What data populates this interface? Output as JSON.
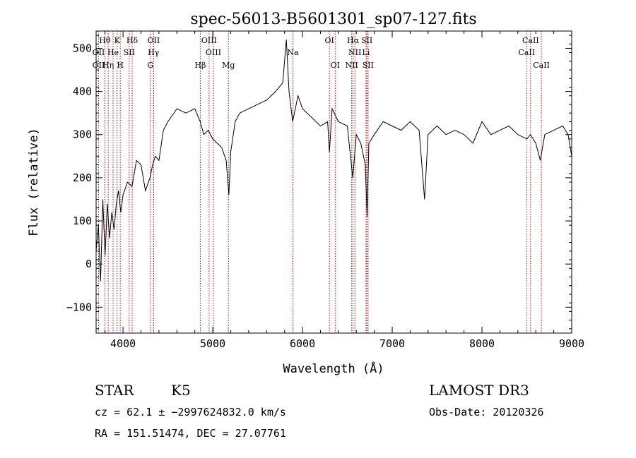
{
  "chart_data": {
    "type": "line",
    "title": "spec-56013-B5601301_sp07-127.fits",
    "xlabel": "Wavelength (Å)",
    "ylabel": "Flux (relative)",
    "xlim": [
      3700,
      9000
    ],
    "ylim": [
      -160,
      540
    ],
    "xticks": [
      4000,
      5000,
      6000,
      7000,
      8000,
      9000
    ],
    "yticks": [
      -100,
      0,
      100,
      200,
      300,
      400,
      500
    ],
    "grid": false,
    "line_color": "#000000",
    "marker_color": "#cc0000",
    "series": [
      {
        "x": [
          3700,
          3725,
          3750,
          3775,
          3800,
          3825,
          3850,
          3875,
          3900,
          3925,
          3950,
          3975,
          4000,
          4050,
          4100,
          4150,
          4200,
          4250,
          4300,
          4330,
          4360,
          4400,
          4450,
          4500,
          4600,
          4700,
          4800,
          4860,
          4900,
          4950,
          5000,
          5050,
          5100,
          5150,
          5180,
          5200,
          5250,
          5300,
          5400,
          5500,
          5600,
          5700,
          5780,
          5820,
          5850,
          5890,
          5950,
          6000,
          6100,
          6200,
          6280,
          6300,
          6330,
          6400,
          6500,
          6560,
          6600,
          6650,
          6700,
          6720,
          6740,
          6800,
          6900,
          7000,
          7100,
          7200,
          7300,
          7360,
          7400,
          7500,
          7600,
          7700,
          7800,
          7900,
          8000,
          8100,
          8200,
          8300,
          8400,
          8500,
          8540,
          8600,
          8650,
          8700,
          8800,
          8900,
          8960,
          9000
        ],
        "y": [
          30,
          90,
          -40,
          150,
          20,
          140,
          60,
          120,
          80,
          140,
          170,
          120,
          160,
          190,
          180,
          240,
          230,
          170,
          200,
          230,
          250,
          240,
          310,
          330,
          360,
          350,
          360,
          330,
          300,
          310,
          290,
          280,
          270,
          240,
          160,
          260,
          330,
          350,
          360,
          370,
          380,
          400,
          420,
          520,
          400,
          330,
          390,
          360,
          340,
          320,
          330,
          260,
          360,
          330,
          320,
          200,
          300,
          280,
          230,
          110,
          280,
          300,
          330,
          320,
          310,
          330,
          310,
          150,
          300,
          320,
          300,
          310,
          300,
          280,
          330,
          300,
          310,
          320,
          300,
          290,
          300,
          280,
          240,
          300,
          310,
          320,
          300,
          250
        ]
      }
    ],
    "lines": [
      {
        "label": "Hθ",
        "x": 3797,
        "row": 0
      },
      {
        "label": "K",
        "x": 3934,
        "row": 0
      },
      {
        "label": "Hδ",
        "x": 4102,
        "row": 0
      },
      {
        "label": "OII",
        "x": 4341,
        "row": 0
      },
      {
        "label": "OIII",
        "x": 4959,
        "row": 0
      },
      {
        "label": "OI",
        "x": 6300,
        "row": 0
      },
      {
        "label": "Hα",
        "x": 6563,
        "row": 0
      },
      {
        "label": "SII",
        "x": 6717,
        "row": 0
      },
      {
        "label": "CaII",
        "x": 8542,
        "row": 0
      },
      {
        "label": "OII",
        "x": 3727,
        "row": 1
      },
      {
        "label": "He",
        "x": 3889,
        "row": 1
      },
      {
        "label": "SII",
        "x": 4069,
        "row": 1
      },
      {
        "label": "Hγ",
        "x": 4340,
        "row": 1
      },
      {
        "label": "OIII",
        "x": 5007,
        "row": 1
      },
      {
        "label": "Na",
        "x": 5893,
        "row": 1
      },
      {
        "label": "NII",
        "x": 6584,
        "row": 1
      },
      {
        "label": "Li",
        "x": 6708,
        "row": 1
      },
      {
        "label": "CaII",
        "x": 8498,
        "row": 1
      },
      {
        "label": "OII",
        "x": 3727,
        "row": 2
      },
      {
        "label": "Hη",
        "x": 3835,
        "row": 2
      },
      {
        "label": "H",
        "x": 3969,
        "row": 2
      },
      {
        "label": "G",
        "x": 4305,
        "row": 2
      },
      {
        "label": "Hβ",
        "x": 4861,
        "row": 2
      },
      {
        "label": "Mg",
        "x": 5175,
        "row": 2
      },
      {
        "label": "OI",
        "x": 6364,
        "row": 2
      },
      {
        "label": "NII",
        "x": 6548,
        "row": 2
      },
      {
        "label": "SII",
        "x": 6731,
        "row": 2
      },
      {
        "label": "CaII",
        "x": 8662,
        "row": 2
      }
    ]
  },
  "info": {
    "class": "STAR",
    "subclass": "K5",
    "survey": "LAMOST DR3",
    "cz": "cz = 62.1 ± −2997624832.0 km/s",
    "obsdate": "Obs-Date: 20120326",
    "radec": "RA = 151.51474, DEC =  27.07761"
  }
}
